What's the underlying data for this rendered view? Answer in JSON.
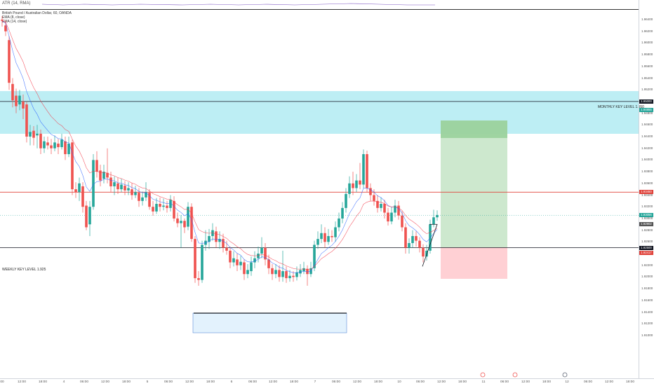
{
  "atr": {
    "label": "ATR (14, RMA)"
  },
  "legend": {
    "title": "British Pound / Australian Dollar, 60, OANDA",
    "ema1": "EMA (8, close)",
    "ema2": "EMA (14, close)"
  },
  "annotations": {
    "monthly": "MONTHLY KEY LEVEL 1.950",
    "weekly": "WEEKLY KEY LEVEL 1.925"
  },
  "price_scale": {
    "ticks": [
      "1.96400",
      "1.96200",
      "1.96000",
      "1.95800",
      "1.95600",
      "1.95400",
      "1.95200",
      "1.95000",
      "1.94800",
      "1.94600",
      "1.94400",
      "1.94200",
      "1.94000",
      "1.93800",
      "1.93600",
      "1.93400",
      "1.93200",
      "1.93000",
      "1.92800",
      "1.92600",
      "1.92400",
      "1.92200",
      "1.92000",
      "1.91800",
      "1.91600",
      "1.91400",
      "1.91200",
      "1.91000"
    ]
  },
  "price_tags": [
    {
      "text": "1.95000",
      "price": 1.95,
      "color": "#131722"
    },
    {
      "text": "1.94855",
      "price": 1.94855,
      "color": "#26a69a"
    },
    {
      "text": "1.93450",
      "price": 1.9345,
      "color": "#e0433b"
    },
    {
      "text": "1.93056",
      "price": 1.93056,
      "color": "#26a69a"
    },
    {
      "text": "1.92902",
      "price": 1.92902,
      "color": "#555555"
    },
    {
      "text": "1.92500",
      "price": 1.925,
      "color": "#131722"
    },
    {
      "text": "1.92417",
      "price": 1.92417,
      "color": "#e0433b"
    }
  ],
  "time_axis": [
    {
      "label": "00",
      "x": 3
    },
    {
      "label": "12:00",
      "x": 31
    },
    {
      "label": "18:00",
      "x": 61
    },
    {
      "label": "4",
      "x": 91
    },
    {
      "label": "06:00",
      "x": 120
    },
    {
      "label": "12:00",
      "x": 150
    },
    {
      "label": "18:00",
      "x": 180
    },
    {
      "label": "5",
      "x": 210
    },
    {
      "label": "06:00",
      "x": 240
    },
    {
      "label": "12:00",
      "x": 270
    },
    {
      "label": "18:00",
      "x": 300
    },
    {
      "label": "6",
      "x": 330
    },
    {
      "label": "06:00",
      "x": 360
    },
    {
      "label": "12:00",
      "x": 389
    },
    {
      "label": "18:00",
      "x": 419
    },
    {
      "label": "7",
      "x": 449
    },
    {
      "label": "06:00",
      "x": 479
    },
    {
      "label": "12:00",
      "x": 509
    },
    {
      "label": "18:00",
      "x": 539
    },
    {
      "label": "10",
      "x": 569
    },
    {
      "label": "06:00",
      "x": 599
    },
    {
      "label": "12:00",
      "x": 629
    },
    {
      "label": "18:00",
      "x": 659
    },
    {
      "label": "11",
      "x": 689
    },
    {
      "label": "06:00",
      "x": 719
    },
    {
      "label": "12:00",
      "x": 749
    },
    {
      "label": "18:00",
      "x": 779
    },
    {
      "label": "12",
      "x": 808
    },
    {
      "label": "06:00",
      "x": 838
    },
    {
      "label": "12:00",
      "x": 868
    },
    {
      "label": "18:00",
      "x": 898
    }
  ],
  "colors": {
    "up": "#26a69a",
    "down": "#ef5350",
    "ema_fast": "#2962ff",
    "ema_slow": "#f23645"
  }
}
